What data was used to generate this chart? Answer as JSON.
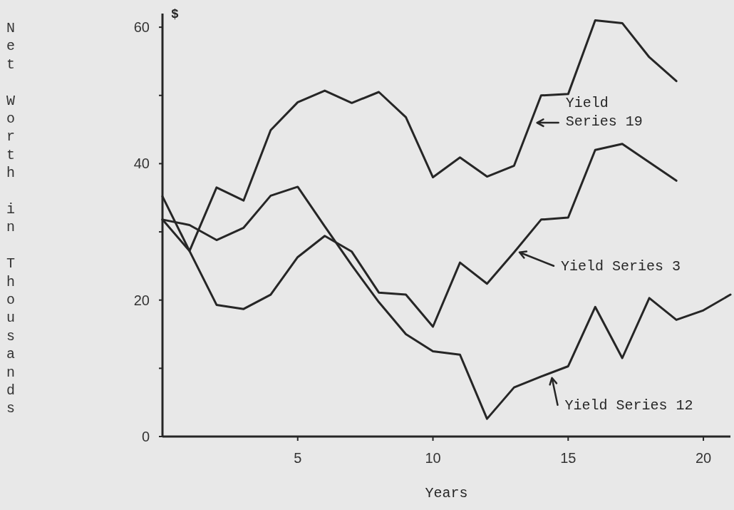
{
  "chart_data": {
    "type": "line",
    "xlabel": "Years",
    "ylabel": "Net Worth in Thousands",
    "annotations": [
      "$"
    ],
    "x": [
      0,
      1,
      2,
      3,
      4,
      5,
      6,
      7,
      8,
      9,
      10,
      11,
      12,
      13,
      14,
      15,
      16,
      17,
      18,
      19,
      20,
      21
    ],
    "series": [
      {
        "name": "Yield Series 19",
        "color": "#262626",
        "values": [
          35.2,
          27.2,
          36.5,
          34.6,
          44.9,
          49,
          50.7,
          48.9,
          50.5,
          46.8,
          38,
          40.9,
          38.1,
          39.7,
          50,
          50.2,
          61,
          60.6,
          55.6,
          52.1,
          null,
          null
        ]
      },
      {
        "name": "Yield Series 3",
        "color": "#262626",
        "values": [
          31.8,
          27.2,
          19.3,
          18.7,
          20.8,
          26.3,
          29.4,
          27.1,
          21.1,
          20.8,
          16.1,
          25.5,
          22.4,
          27,
          31.8,
          32.1,
          42,
          42.9,
          40.2,
          37.5,
          null,
          null
        ]
      },
      {
        "name": "Yield Series 12",
        "color": "#262626",
        "values": [
          31.8,
          31,
          28.8,
          30.6,
          35.3,
          36.6,
          30.8,
          25.1,
          19.7,
          15,
          12.5,
          12,
          2.6,
          7.2,
          8.8,
          10.3,
          19,
          11.5,
          20.3,
          17.1,
          18.5,
          20.8
        ]
      }
    ],
    "xlim": [
      0,
      21
    ],
    "ylim": [
      0,
      62
    ],
    "xticks": [
      5,
      10,
      15,
      20
    ],
    "yticks": [
      0,
      {
        "value": 10,
        "label": null
      },
      20,
      {
        "value": 30,
        "label": null
      },
      40,
      {
        "value": 50,
        "label": null
      },
      60
    ],
    "grid": false,
    "legend": "right",
    "marker": "none",
    "line_style": "solid"
  }
}
